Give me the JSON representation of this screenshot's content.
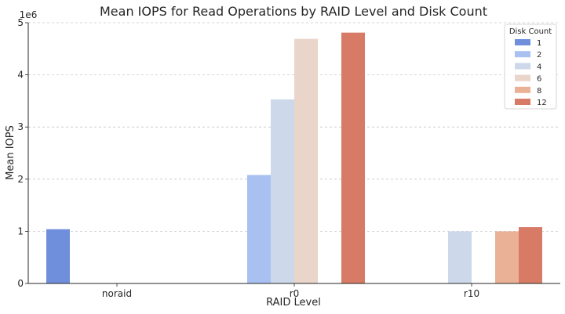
{
  "chart_data": {
    "type": "bar",
    "title": "Mean IOPS for Read Operations by RAID Level and Disk Count",
    "xlabel": "RAID Level",
    "ylabel": "Mean IOPS",
    "y_offset_label": "1e6",
    "y_multiplier": 1000000,
    "categories": [
      "noraid",
      "r0",
      "r10"
    ],
    "yticks": [
      0,
      1,
      2,
      3,
      4,
      5
    ],
    "ylim": [
      0,
      5
    ],
    "grid": "horizontal dashed",
    "legend": {
      "title": "Disk Count",
      "placement": "top-right"
    },
    "series": [
      {
        "name": "1",
        "color": "#6f8fdc",
        "values": [
          1.04,
          null,
          null
        ]
      },
      {
        "name": "2",
        "color": "#a8c1f0",
        "values": [
          null,
          2.08,
          null
        ]
      },
      {
        "name": "4",
        "color": "#cdd8ea",
        "values": [
          null,
          3.53,
          1.0
        ]
      },
      {
        "name": "6",
        "color": "#e9d5ca",
        "values": [
          null,
          4.69,
          null
        ]
      },
      {
        "name": "8",
        "color": "#eab197",
        "values": [
          null,
          null,
          1.0
        ]
      },
      {
        "name": "12",
        "color": "#d77a66",
        "values": [
          null,
          4.81,
          1.08
        ]
      }
    ]
  }
}
